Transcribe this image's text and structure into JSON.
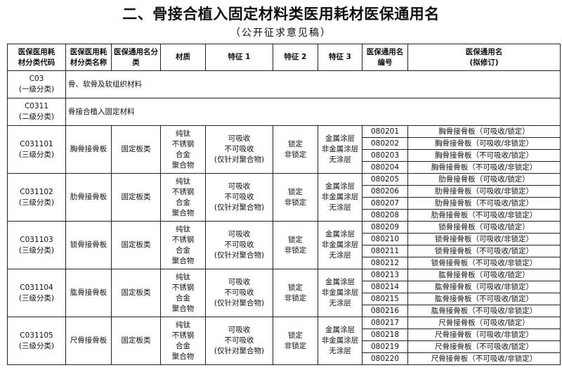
{
  "title": "二、骨接合植入固定材料类医用耗材医保通用名",
  "subtitle": "（公开征求意见稿）",
  "headers": [
    "医保医用耗\n材分类代码",
    "医保医用耗\n材分类名称",
    "医保通用名分\n类",
    "材质",
    "特征 1",
    "特征 2",
    "特征 3",
    "医保通用名\n编号",
    "医保通用名\n(拟修订)"
  ],
  "level_rows": [
    {
      "code": "C03\n(一级分类)",
      "name": "骨、软骨及软组织材料"
    },
    {
      "code": "C0311\n(二级分类)",
      "name": "骨接合植入固定材料"
    }
  ],
  "groups": [
    {
      "code": "C031101\n(三级分类)",
      "name": "胸骨接骨板",
      "category": "固定板类",
      "material": "纯钛\n不锈钢\n合金\n聚合物",
      "feature1": "可吸收\n不可吸收\n(仅针对聚合物)",
      "feature2": "锁定\n非锁定",
      "feature3": "金属涂层\n非金属涂层\n无涂层",
      "items": [
        {
          "no": "080201",
          "name": "胸骨接骨板（可吸收/锁定）"
        },
        {
          "no": "080202",
          "name": "胸骨接骨板（可吸收/非锁定）"
        },
        {
          "no": "080203",
          "name": "胸骨接骨板（不可吸收/锁定）"
        },
        {
          "no": "080204",
          "name": "胸骨接骨板（不可吸收/非锁定）"
        }
      ]
    },
    {
      "code": "C031102\n(三级分类)",
      "name": "肋骨接骨板",
      "category": "固定板类",
      "material": "纯钛\n不锈钢\n合金\n聚合物",
      "feature1": "可吸收\n不可吸收\n(仅针对聚合物)",
      "feature2": "锁定\n非锁定",
      "feature3": "金属涂层\n非金属涂层\n无涂层",
      "items": [
        {
          "no": "080205",
          "name": "肋骨接骨板（可吸收/锁定）"
        },
        {
          "no": "080206",
          "name": "肋骨接骨板（可吸收/非锁定）"
        },
        {
          "no": "080207",
          "name": "肋骨接骨板（不可吸收/锁定）"
        },
        {
          "no": "080208",
          "name": "肋骨接骨板（不可吸收/非锁定）"
        }
      ]
    },
    {
      "code": "C031103\n(三级分类)",
      "name": "锁骨接骨板",
      "category": "固定板类",
      "material": "纯钛\n不锈钢\n合金\n聚合物",
      "feature1": "可吸收\n不可吸收\n(仅针对聚合物)",
      "feature2": "锁定\n非锁定",
      "feature3": "金属涂层\n非金属涂层\n无涂层",
      "items": [
        {
          "no": "080209",
          "name": "锁骨接骨板（可吸收/锁定）"
        },
        {
          "no": "080210",
          "name": "锁骨接骨板（可吸收/非锁定）"
        },
        {
          "no": "080211",
          "name": "锁骨接骨板（不可吸收/锁定）"
        },
        {
          "no": "080212",
          "name": "锁骨接骨板（不可吸收/非锁定）"
        }
      ]
    },
    {
      "code": "C031104\n(三级分类)",
      "name": "肱骨接骨板",
      "category": "固定板类",
      "material": "纯钛\n不锈钢\n合金\n聚合物",
      "feature1": "可吸收\n不可吸收\n(仅针对聚合物)",
      "feature2": "锁定\n非锁定",
      "feature3": "金属涂层\n非金属涂层\n无涂层",
      "items": [
        {
          "no": "080213",
          "name": "肱骨接骨板（可吸收/锁定）"
        },
        {
          "no": "080214",
          "name": "肱骨接骨板（可吸收/非锁定）"
        },
        {
          "no": "080215",
          "name": "肱骨接骨板（不可吸收/锁定）"
        },
        {
          "no": "080216",
          "name": "肱骨接骨板（不可吸收/非锁定）"
        }
      ]
    },
    {
      "code": "C031105\n(三级分类)",
      "name": "尺骨接骨板",
      "category": "固定板类",
      "material": "纯钛\n不锈钢\n合金\n聚合物",
      "feature1": "可吸收\n不可吸收\n(仅针对聚合物)",
      "feature2": "锁定\n非锁定",
      "feature3": "金属涂层\n非金属涂层\n无涂层",
      "items": [
        {
          "no": "080217",
          "name": "尺骨接骨板（可吸收/锁定）"
        },
        {
          "no": "080218",
          "name": "尺骨接骨板（可吸收/非锁定）"
        },
        {
          "no": "080219",
          "name": "尺骨接骨板（不可吸收/锁定）"
        },
        {
          "no": "080220",
          "name": "尺骨接骨板（不可吸收/非锁定）"
        }
      ]
    }
  ]
}
